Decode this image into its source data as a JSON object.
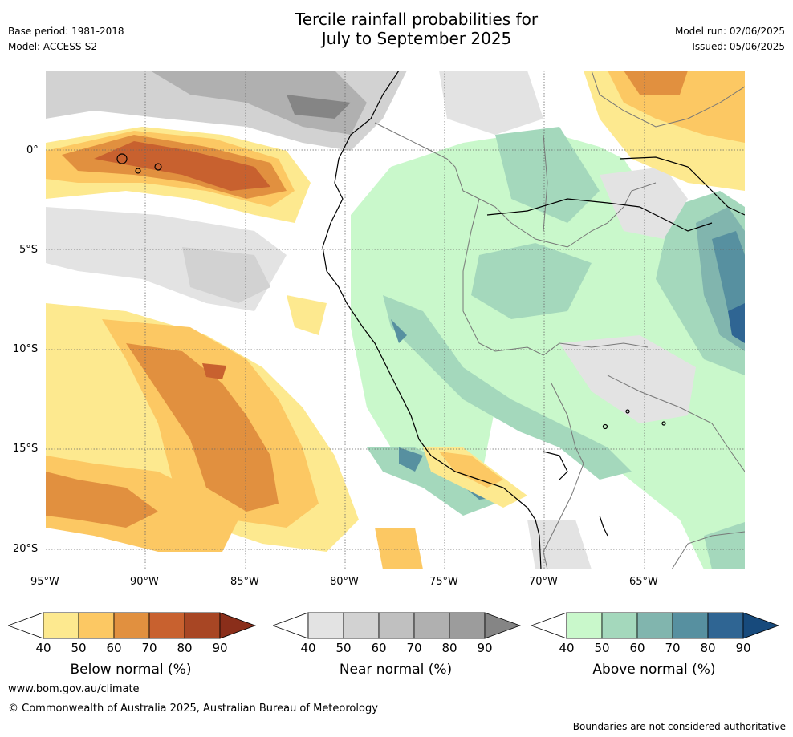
{
  "header": {
    "title_line1": "Tercile rainfall probabilities for",
    "title_line2": "July to September 2025",
    "base_period": "Base period: 1981-2018",
    "model": "Model: ACCESS-S2",
    "model_run": "Model run: 02/06/2025",
    "issued": "Issued: 05/06/2025"
  },
  "map": {
    "lat_labels": [
      "0°",
      "5°S",
      "10°S",
      "15°S",
      "20°S"
    ],
    "lon_labels": [
      "95°W",
      "90°W",
      "85°W",
      "80°W",
      "75°W",
      "70°W",
      "65°W"
    ],
    "gridlines": true
  },
  "colorbars": [
    {
      "title": "Below normal (%)",
      "ticks": [
        "40",
        "50",
        "60",
        "70",
        "80",
        "90"
      ],
      "colors": [
        "#ffffff",
        "#fde98f",
        "#fcc863",
        "#e1903f",
        "#c8612f",
        "#a84624",
        "#8a2e1a"
      ]
    },
    {
      "title": "Near normal (%)",
      "ticks": [
        "40",
        "50",
        "60",
        "70",
        "80",
        "90"
      ],
      "colors": [
        "#ffffff",
        "#e3e3e3",
        "#d2d2d2",
        "#c0c0c0",
        "#b0b0b0",
        "#9c9c9c",
        "#858585"
      ]
    },
    {
      "title": "Above normal (%)",
      "ticks": [
        "40",
        "50",
        "60",
        "70",
        "80",
        "90"
      ],
      "colors": [
        "#ffffff",
        "#c9f8cb",
        "#a4d8bc",
        "#81b5ae",
        "#5790a0",
        "#2f6593",
        "#174a7c"
      ]
    }
  ],
  "footer": {
    "website": "www.bom.gov.au/climate",
    "copyright": "© Commonwealth of Australia 2025, Australian Bureau of Meteorology",
    "disclaimer": "Boundaries are not considered authoritative"
  }
}
